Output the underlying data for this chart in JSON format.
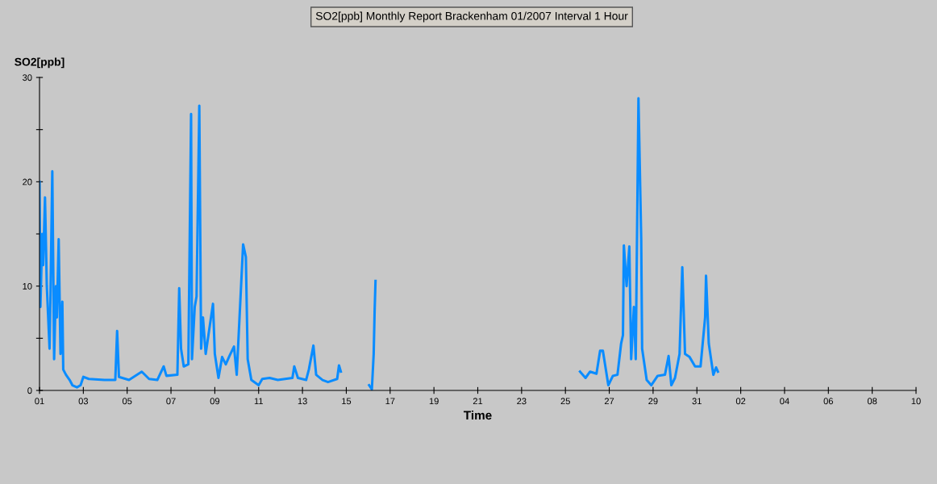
{
  "chart_data": {
    "type": "line",
    "title": "SO2[ppb] Monthly Report Brackenham 01/2007 Interval 1 Hour",
    "ylabel": "SO2[ppb]",
    "xlabel": "Time",
    "xlim": [
      "2007-01-01",
      "2007-02-10"
    ],
    "ylim": [
      0,
      30
    ],
    "xticks": [
      {
        "value": "2007-01-01",
        "label": "01"
      },
      {
        "value": "2007-01-03",
        "label": "03"
      },
      {
        "value": "2007-01-05",
        "label": "05"
      },
      {
        "value": "2007-01-07",
        "label": "07"
      },
      {
        "value": "2007-01-09",
        "label": "09"
      },
      {
        "value": "2007-01-11",
        "label": "11"
      },
      {
        "value": "2007-01-13",
        "label": "13"
      },
      {
        "value": "2007-01-15",
        "label": "15"
      },
      {
        "value": "2007-01-17",
        "label": "17"
      },
      {
        "value": "2007-01-19",
        "label": "19"
      },
      {
        "value": "2007-01-21",
        "label": "21"
      },
      {
        "value": "2007-01-23",
        "label": "23"
      },
      {
        "value": "2007-01-25",
        "label": "25"
      },
      {
        "value": "2007-01-27",
        "label": "27"
      },
      {
        "value": "2007-01-29",
        "label": "29"
      },
      {
        "value": "2007-01-31",
        "label": "31"
      },
      {
        "value": "2007-02-02",
        "label": "02"
      },
      {
        "value": "2007-02-04",
        "label": "04"
      },
      {
        "value": "2007-02-06",
        "label": "06"
      },
      {
        "value": "2007-02-08",
        "label": "08"
      },
      {
        "value": "2007-02-10",
        "label": "10"
      }
    ],
    "yticks": [
      0,
      {
        "value": 5,
        "label": null
      },
      10,
      {
        "value": 15,
        "label": null
      },
      20,
      {
        "value": 25,
        "label": null
      },
      30
    ],
    "grid": false,
    "legend": false,
    "marker": "none",
    "line_style": "solid",
    "series": [
      {
        "color": "#0a8cff",
        "x": [
          "2007-01-01T00:00",
          "2007-01-01T01:00",
          "2007-01-01T03:00",
          "2007-01-01T04:00",
          "2007-01-01T06:00",
          "2007-01-01T08:00",
          "2007-01-01T11:00",
          "2007-01-01T12:00",
          "2007-01-01T14:00",
          "2007-01-01T16:00",
          "2007-01-01T18:00",
          "2007-01-01T19:00",
          "2007-01-01T21:00",
          "2007-01-01T23:00",
          "2007-01-02T01:00",
          "2007-01-02T02:00",
          "2007-01-02T05:00",
          "2007-01-02T09:00",
          "2007-01-02T12:00",
          "2007-01-02T17:00",
          "2007-01-02T21:00",
          "2007-01-03T00:00",
          "2007-01-03T06:00",
          "2007-01-03T23:00",
          "2007-01-04T11:00",
          "2007-01-04T13:00",
          "2007-01-04T15:00",
          "2007-01-05T02:00",
          "2007-01-05T16:00",
          "2007-01-06T00:00",
          "2007-01-06T09:00",
          "2007-01-06T16:00",
          "2007-01-06T19:00",
          "2007-01-07T07:00",
          "2007-01-07T09:00",
          "2007-01-07T11:00",
          "2007-01-07T14:00",
          "2007-01-07T19:00",
          "2007-01-07T22:00",
          "2007-01-07T23:00",
          "2007-01-08T02:00",
          "2007-01-08T04:00",
          "2007-01-08T07:00",
          "2007-01-08T09:00",
          "2007-01-08T11:00",
          "2007-01-08T14:00",
          "2007-01-08T22:00",
          "2007-01-09T00:00",
          "2007-01-09T04:00",
          "2007-01-09T08:00",
          "2007-01-09T12:00",
          "2007-01-09T16:00",
          "2007-01-09T21:00",
          "2007-01-10T00:00",
          "2007-01-10T07:00",
          "2007-01-10T10:00",
          "2007-01-10T12:00",
          "2007-01-10T16:00",
          "2007-01-11T00:00",
          "2007-01-11T04:00",
          "2007-01-11T12:00",
          "2007-01-11T21:00",
          "2007-01-12T13:00",
          "2007-01-12T15:00",
          "2007-01-12T19:00",
          "2007-01-13T04:00",
          "2007-01-13T07:00",
          "2007-01-13T12:00",
          "2007-01-13T15:00",
          "2007-01-13T22:00",
          "2007-01-14T04:00",
          "2007-01-14T14:00",
          "2007-01-14T16:00",
          "2007-01-14T18:00",
          "2007-01-15T12:00",
          "2007-01-16T01:00",
          "2007-01-16T04:00",
          "2007-01-16T06:00",
          "2007-01-16T07:00",
          "2007-01-16T08:00",
          "2007-01-20T00:00",
          "2007-01-25T16:00",
          "2007-01-25T22:00",
          "2007-01-26T03:00",
          "2007-01-26T10:00",
          "2007-01-26T14:00",
          "2007-01-26T17:00",
          "2007-01-26T23:00",
          "2007-01-27T04:00",
          "2007-01-27T09:00",
          "2007-01-27T13:00",
          "2007-01-27T15:00",
          "2007-01-27T16:00",
          "2007-01-27T19:00",
          "2007-01-27T22:00",
          "2007-01-28T00:00",
          "2007-01-28T03:00",
          "2007-01-28T05:00",
          "2007-01-28T08:00",
          "2007-01-28T11:00",
          "2007-01-28T12:00",
          "2007-01-28T17:00",
          "2007-01-28T22:00",
          "2007-01-29T05:00",
          "2007-01-29T13:00",
          "2007-01-29T17:00",
          "2007-01-29T20:00",
          "2007-01-30T00:00",
          "2007-01-30T05:00",
          "2007-01-30T08:00",
          "2007-01-30T11:00",
          "2007-01-30T16:00",
          "2007-01-30T22:00",
          "2007-01-31T04:00",
          "2007-01-31T09:00",
          "2007-01-31T10:00",
          "2007-01-31T13:00",
          "2007-01-31T18:00",
          "2007-01-31T21:00",
          "2007-01-31T23:00"
        ],
        "values": [
          20,
          8,
          15,
          12,
          18.5,
          10,
          4,
          9,
          21,
          3,
          10,
          7,
          14.5,
          3.5,
          8.5,
          2,
          1.5,
          1,
          0.5,
          0.3,
          0.5,
          1.3,
          1.1,
          1.0,
          1.0,
          5.7,
          1.3,
          1.0,
          1.8,
          1.1,
          1.0,
          2.3,
          1.4,
          1.5,
          9.8,
          4,
          2.3,
          2.5,
          26.5,
          3,
          8,
          9,
          27.3,
          4,
          7,
          3.5,
          8.3,
          3.5,
          1.2,
          3.2,
          2.5,
          3.3,
          4.2,
          1.5,
          14,
          12.8,
          3,
          1.0,
          0.5,
          1.1,
          1.2,
          1.0,
          1.2,
          2.3,
          1.2,
          1.0,
          2.0,
          4.3,
          1.5,
          1.0,
          0.8,
          1.1,
          2.4,
          1.8,
          null,
          0.5,
          0.1,
          3.5,
          7.5,
          10.5,
          null,
          1.8,
          1.2,
          1.8,
          1.6,
          3.8,
          3.8,
          0.5,
          1.4,
          1.5,
          4.5,
          5.3,
          13.9,
          10,
          13.8,
          3,
          8,
          3,
          28,
          14.5,
          4,
          1,
          0.5,
          1.4,
          1.5,
          3.3,
          0.5,
          1.2,
          3.5,
          11.8,
          3.5,
          3.2,
          2.3,
          2.3,
          7,
          11,
          4.5,
          1.5,
          2.2,
          1.8
        ]
      }
    ]
  }
}
